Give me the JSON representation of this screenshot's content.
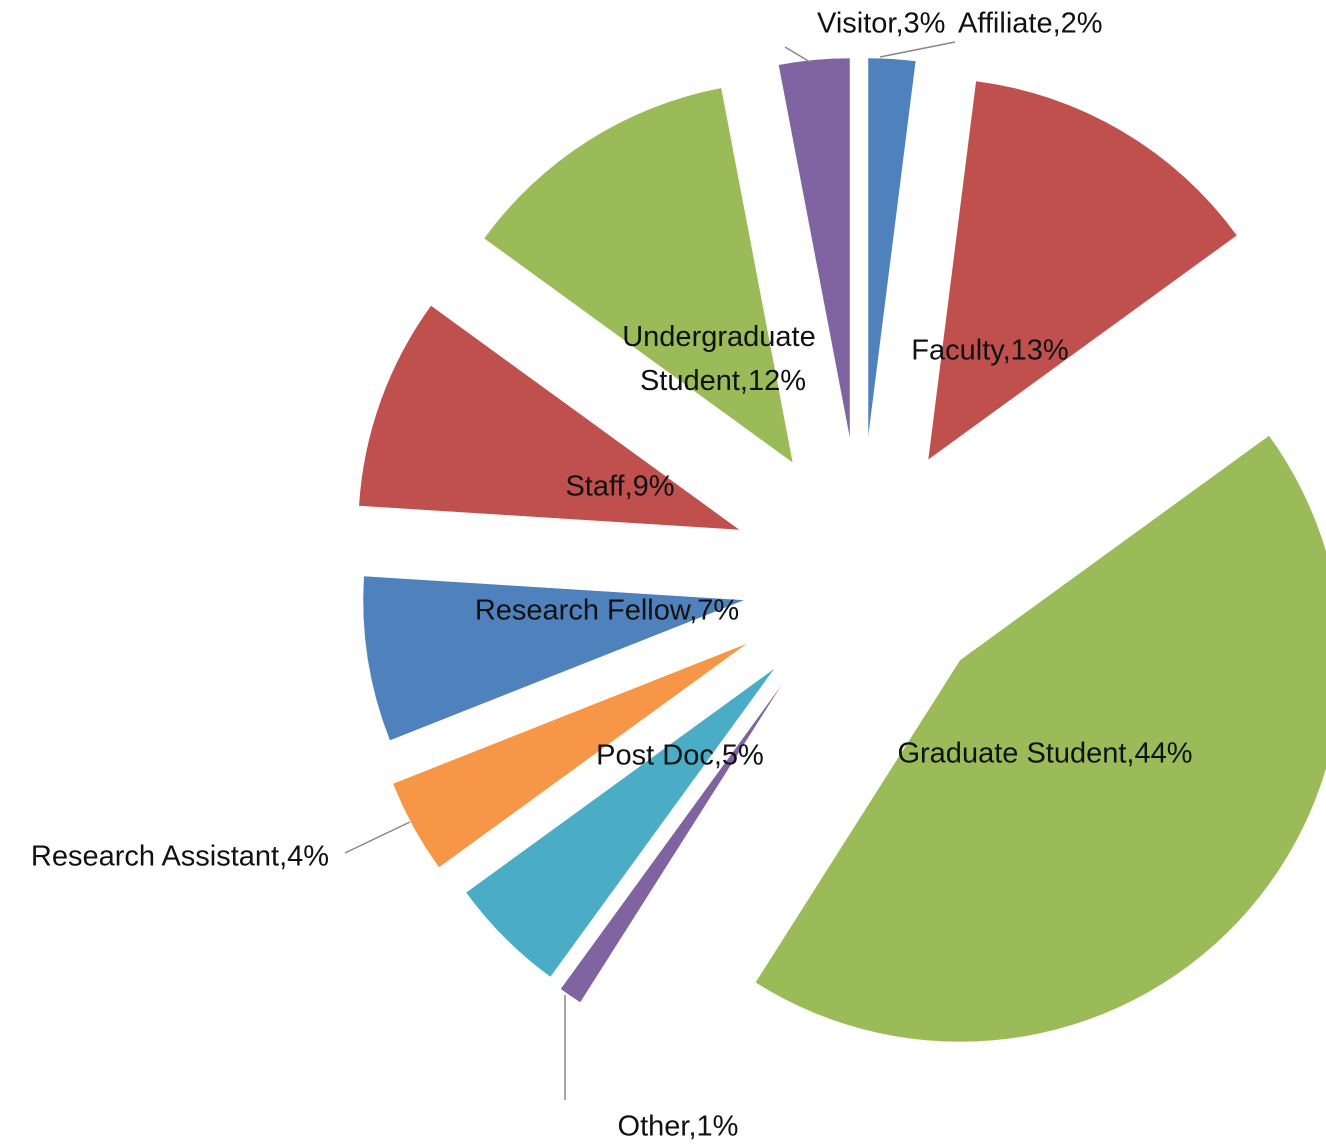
{
  "chart_data": {
    "type": "pie",
    "categories": [
      "Affiliate,2%",
      "Faculty,13%",
      "Graduate Student,44%",
      "Other,1%",
      "Post Doc,5%",
      "Research Assistant,4%",
      "Research Fellow,7%",
      "Staff,9%",
      "Undergraduate Student,12%",
      "Visitor,3%"
    ],
    "values": [
      2,
      13,
      44,
      1,
      5,
      4,
      7,
      9,
      12,
      3
    ],
    "colors": [
      "#4f81bd",
      "#c0504d",
      "#9bbb59",
      "#8064a2",
      "#4bacc6",
      "#f79646",
      "#4f81bd",
      "#c0504d",
      "#9bbb59",
      "#8064a2"
    ]
  }
}
